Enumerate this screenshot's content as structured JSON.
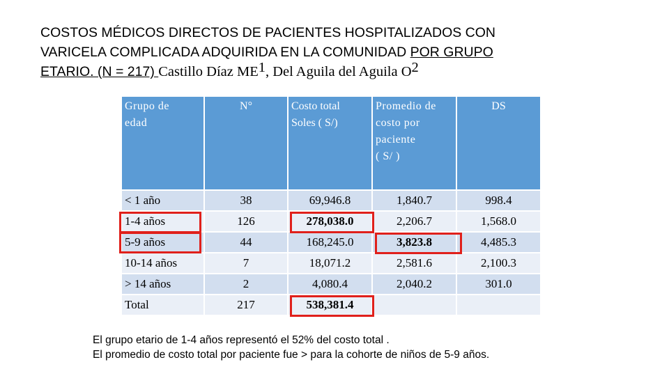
{
  "title": {
    "line1": "COSTOS MÉDICOS DIRECTOS  DE PACIENTES HOSPITALIZADOS CON",
    "line2_part1": "VARICELA COMPLICADA ADQUIRIDA EN LA COMUNIDAD ",
    "line2_part2": "POR GRUPO",
    "line3_part1": "ETARIO. (N = 217) ",
    "line3_author1": "Castillo Díaz ME",
    "line3_sup1": "1",
    "line3_author2": ", Del Aguila del Aguila O",
    "line3_sup2": "2"
  },
  "table": {
    "headers": {
      "grupo_line1": "Grupo de",
      "grupo_line2": "edad",
      "n": "N°",
      "costo_line1": "Costo total",
      "costo_line2": "Soles ( S/)",
      "prom_line1": "Promedio de",
      "prom_line2": "costo por",
      "prom_line3": "paciente",
      "prom_line4": " ( S/ )",
      "ds": "DS"
    },
    "rows": [
      {
        "grupo": "< 1 año",
        "n": "38",
        "costo": "69,946.8",
        "promedio": "1,840.7",
        "ds": "998.4"
      },
      {
        "grupo": "1-4 años",
        "n": "126",
        "costo": "278,038.0",
        "promedio": "2,206.7",
        "ds": "1,568.0"
      },
      {
        "grupo": "5-9 años",
        "n": "44",
        "costo": "168,245.0",
        "promedio": "3,823.8",
        "ds": "4,485.3"
      },
      {
        "grupo": "10-14 años",
        "n": "7",
        "costo": "18,071.2",
        "promedio": "2,581.6",
        "ds": "2,100.3"
      },
      {
        "grupo": "> 14 años",
        "n": "2",
        "costo": "4,080.4",
        "promedio": "2,040.2",
        "ds": "301.0"
      },
      {
        "grupo": "Total",
        "n": "217",
        "costo": "538,381.4",
        "promedio": "",
        "ds": ""
      }
    ]
  },
  "notes": {
    "line1": "El grupo etario de 1-4 años representó el 52% del costo total .",
    "line2": "El  promedio de costo total por paciente fue > para la cohorte de niños de 5-9 años."
  },
  "colors": {
    "header": "#5b9bd5",
    "row_even": "#d2deef",
    "row_odd": "#eaeff7",
    "highlight": "#e0201b"
  }
}
